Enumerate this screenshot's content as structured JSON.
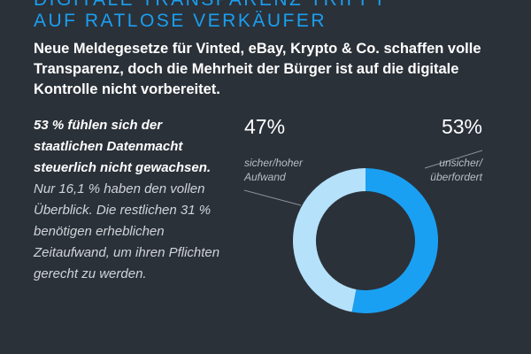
{
  "header": {
    "title_line1": "DIGITALE TRANSPARENZ TRIFFT",
    "title_line2": "AUF RATLOSE VERKÄUFER",
    "subtitle": "Neue Meldegesetze für Vinted, eBay, Krypto & Co. schaffen volle Transparenz, doch die Mehrheit der Bürger ist auf die digitale Kontrolle nicht vorbereitet."
  },
  "body": {
    "highlight": "53 % fühlen sich der staatlichen Datenmacht steuerlich nicht gewachsen.",
    "text": "Nur 16,1 % haben den vollen Überblick. Die restlichen 31 % benötigen erheblichen Zeitaufwand, um ihren Pflichten gerecht zu werden."
  },
  "chart_data": {
    "type": "pie",
    "donut": true,
    "categories": [
      "sicher/hoher\nAufwand",
      "unsicher/\nüberfordert"
    ],
    "values": [
      47,
      53
    ],
    "value_labels": [
      "47%",
      "53%"
    ],
    "colors": [
      "#b5e1fb",
      "#1aa0f2"
    ]
  }
}
